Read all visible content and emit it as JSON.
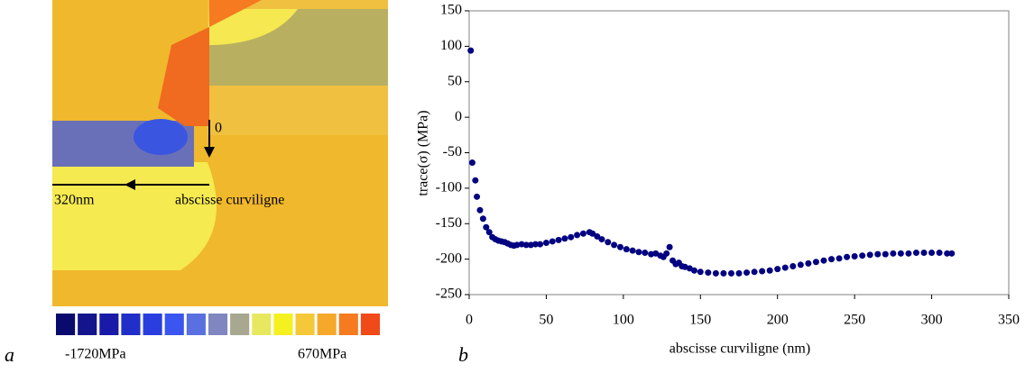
{
  "panel_a": {
    "label": "a",
    "arrow_start": "0",
    "arrow_end": "320nm",
    "arrow_caption": "abscisse curviligne",
    "colorbar_min": "-1720MPa",
    "colorbar_max": "670MPa",
    "colorbar_colors": [
      "#0a0a6e",
      "#14148c",
      "#1a1aa8",
      "#1f2fc8",
      "#2a3ee0",
      "#3a55f0",
      "#5a70e0",
      "#7f86c0",
      "#a8a890",
      "#e8e860",
      "#f5f020",
      "#f5c83a",
      "#f5a82a",
      "#f57a20",
      "#f04a18"
    ]
  },
  "panel_b_label": "b",
  "chart_data": {
    "type": "scatter",
    "color": "#000080",
    "x_label": "abscisse curviligne (nm)",
    "y_label": "trace(σ) (MPa)",
    "xlim": [
      0,
      350
    ],
    "xticks": [
      0,
      50,
      100,
      150,
      200,
      250,
      300,
      350
    ],
    "ylim": [
      -250,
      150
    ],
    "yticks": [
      -250,
      -200,
      -150,
      -100,
      -50,
      0,
      50,
      100,
      150
    ],
    "x": [
      1,
      2,
      4,
      5,
      7,
      9,
      11,
      13,
      15,
      17,
      19,
      21,
      23,
      25,
      27,
      29,
      31,
      34,
      37,
      40,
      43,
      46,
      50,
      54,
      58,
      62,
      66,
      70,
      74,
      78,
      80,
      83,
      86,
      90,
      94,
      98,
      102,
      106,
      110,
      114,
      118,
      121,
      124,
      126,
      128,
      130,
      132,
      134,
      136,
      138,
      140,
      143,
      146,
      150,
      155,
      160,
      165,
      170,
      175,
      180,
      185,
      190,
      195,
      200,
      205,
      210,
      215,
      220,
      225,
      230,
      235,
      240,
      245,
      250,
      255,
      260,
      265,
      270,
      275,
      280,
      285,
      290,
      295,
      300,
      305,
      310,
      313
    ],
    "values": [
      94,
      -64,
      -89,
      -112,
      -131,
      -143,
      -155,
      -162,
      -169,
      -172,
      -174,
      -175,
      -176,
      -178,
      -180,
      -181,
      -180,
      -179,
      -180,
      -180,
      -179,
      -179,
      -177,
      -175,
      -173,
      -171,
      -169,
      -166,
      -164,
      -162,
      -164,
      -168,
      -172,
      -176,
      -180,
      -183,
      -186,
      -188,
      -190,
      -191,
      -193,
      -192,
      -195,
      -197,
      -192,
      -183,
      -202,
      -207,
      -205,
      -210,
      -211,
      -213,
      -216,
      -218,
      -219,
      -220,
      -220,
      -220,
      -220,
      -219,
      -218,
      -217,
      -216,
      -214,
      -212,
      -210,
      -208,
      -206,
      -204,
      -202,
      -200,
      -199,
      -197,
      -196,
      -195,
      -194,
      -193,
      -193,
      -192,
      -192,
      -192,
      -191,
      -191,
      -191,
      -191,
      -192,
      -192
    ]
  }
}
